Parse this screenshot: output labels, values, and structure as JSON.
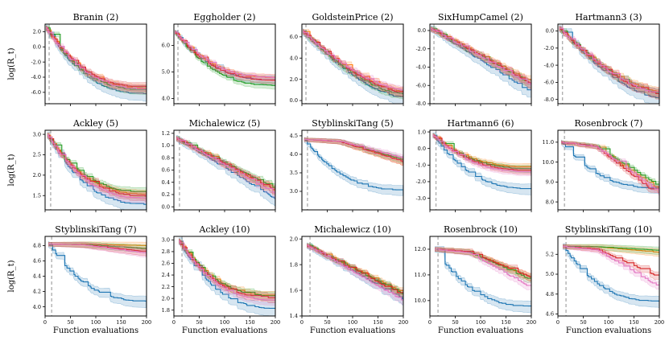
{
  "figure": {
    "xlabel": "Function evaluations",
    "ylabel": "log(R_t)"
  },
  "chart_data": [
    {
      "type": "line",
      "title": "Branin (2)",
      "xlim": [
        0,
        200
      ],
      "ylim": [
        -7.5,
        3.0
      ],
      "yticks": [
        2.0,
        0.0,
        -2.0,
        -4.0,
        -6.0
      ],
      "ytick_labels": [
        "2.0",
        "0.0",
        "-2.0",
        "-4.0",
        "-6.0"
      ],
      "init_x": 2,
      "shape": "fast",
      "blue_low": -6.3,
      "start": 2.5,
      "ends": {
        "blue": -6.1,
        "orange": -5.4,
        "green": -5.6,
        "red": -5.2,
        "pink": -5.5
      }
    },
    {
      "type": "line",
      "title": "Eggholder (2)",
      "xlim": [
        0,
        200
      ],
      "ylim": [
        3.8,
        6.8
      ],
      "yticks": [
        6.0,
        5.0,
        4.0
      ],
      "ytick_labels": [
        "6.0",
        "5.0",
        "4.0"
      ],
      "init_x": 2,
      "shape": "fast",
      "start": 6.5,
      "ends": {
        "blue": 4.7,
        "orange": 4.8,
        "green": 4.5,
        "red": 4.7,
        "pink": 4.8
      }
    },
    {
      "type": "line",
      "title": "GoldsteinPrice (2)",
      "xlim": [
        0,
        200
      ],
      "ylim": [
        -0.3,
        7.2
      ],
      "yticks": [
        6.0,
        4.0,
        2.0,
        0.0
      ],
      "ytick_labels": [
        "6.0",
        "4.0",
        "2.0",
        "0.0"
      ],
      "init_x": 2,
      "shape": "mid",
      "start": 6.5,
      "ends": {
        "blue": 0.3,
        "orange": 0.9,
        "green": 0.6,
        "red": 0.8,
        "pink": 1.0
      }
    },
    {
      "type": "line",
      "title": "SixHumpCamel (2)",
      "xlim": [
        0,
        200
      ],
      "ylim": [
        -8.0,
        0.7
      ],
      "yticks": [
        0.0,
        -2.0,
        -4.0,
        -6.0,
        -8.0
      ],
      "ytick_labels": [
        "0.0",
        "-2.0",
        "-4.0",
        "-6.0",
        "-8.0"
      ],
      "init_x": 2,
      "shape": "linear",
      "start": 0.2,
      "ends": {
        "blue": -6.8,
        "orange": -5.6,
        "green": -5.9,
        "red": -5.8,
        "pink": -6.0
      }
    },
    {
      "type": "line",
      "title": "Hartmann3 (3)",
      "xlim": [
        0,
        200
      ],
      "ylim": [
        -8.5,
        0.8
      ],
      "yticks": [
        0.0,
        -2.0,
        -4.0,
        -6.0,
        -8.0
      ],
      "ytick_labels": [
        "0.0",
        "-2.0",
        "-4.0",
        "-6.0",
        "-8.0"
      ],
      "init_x": 3,
      "shape": "mid",
      "start": 0.3,
      "ends": {
        "blue": -7.8,
        "orange": -7.0,
        "green": -7.2,
        "red": -7.3,
        "pink": -7.2
      }
    },
    {
      "type": "line",
      "title": "Ackley (5)",
      "xlim": [
        0,
        200
      ],
      "ylim": [
        1.15,
        3.1
      ],
      "yticks": [
        3.0,
        2.5,
        2.0,
        1.5
      ],
      "ytick_labels": [
        "3.0",
        "2.5",
        "2.0",
        "1.5"
      ],
      "init_x": 5,
      "shape": "fast",
      "start": 2.98,
      "ends": {
        "blue": 1.3,
        "orange": 1.55,
        "green": 1.6,
        "red": 1.5,
        "pink": 1.45
      }
    },
    {
      "type": "line",
      "title": "Michalewicz (5)",
      "xlim": [
        0,
        200
      ],
      "ylim": [
        -0.05,
        1.25
      ],
      "yticks": [
        1.2,
        1.0,
        0.8,
        0.6,
        0.4,
        0.2,
        0.0
      ],
      "ytick_labels": [
        "1.2",
        "1.0",
        "0.8",
        "0.6",
        "0.4",
        "0.2",
        "0.0"
      ],
      "init_x": 5,
      "shape": "linear",
      "start": 1.12,
      "ends": {
        "blue": 0.13,
        "orange": 0.25,
        "green": 0.3,
        "red": 0.27,
        "pink": 0.22
      }
    },
    {
      "type": "line",
      "title": "StyblinskiTang (5)",
      "xlim": [
        0,
        200
      ],
      "ylim": [
        2.5,
        4.65
      ],
      "yticks": [
        4.5,
        4.0,
        3.5,
        3.0
      ],
      "ytick_labels": [
        "4.5",
        "4.0",
        "3.5",
        "3.0"
      ],
      "init_x": 5,
      "shape": "plateau",
      "start": 4.4,
      "ends": {
        "blue": 3.05,
        "orange": 3.8,
        "green": 3.85,
        "red": 3.8,
        "pink": 3.9
      }
    },
    {
      "type": "line",
      "title": "Hartmann6 (6)",
      "xlim": [
        0,
        200
      ],
      "ylim": [
        -3.7,
        1.1
      ],
      "yticks": [
        1.0,
        0.0,
        -1.0,
        -2.0,
        -3.0
      ],
      "ytick_labels": [
        "1.0",
        "0.0",
        "-1.0",
        "-2.0",
        "-3.0"
      ],
      "init_x": 6,
      "shape": "fast",
      "start": 0.8,
      "ends": {
        "blue": -2.4,
        "orange": -1.1,
        "green": -1.2,
        "red": -1.3,
        "pink": -1.4
      }
    },
    {
      "type": "line",
      "title": "Rosenbrock (7)",
      "xlim": [
        0,
        200
      ],
      "ylim": [
        7.6,
        11.6
      ],
      "yticks": [
        11.0,
        10.0,
        9.0,
        8.0
      ],
      "ytick_labels": [
        "11.0",
        "10.0",
        "9.0",
        "8.0"
      ],
      "init_x": 7,
      "shape": "plateau",
      "start": 11.0,
      "ends": {
        "blue": 8.7,
        "orange": 8.6,
        "green": 8.8,
        "red": 8.3,
        "pink": 8.5
      }
    },
    {
      "type": "line",
      "title": "StyblinskiTang (7)",
      "xlim": [
        0,
        200
      ],
      "ylim": [
        3.88,
        4.92
      ],
      "yticks": [
        4.8,
        4.6,
        4.4,
        4.2,
        4.0
      ],
      "ytick_labels": [
        "4.8",
        "4.6",
        "4.4",
        "4.2",
        "4.0"
      ],
      "init_x": 7,
      "shape": "plateau",
      "start": 4.82,
      "ends": {
        "blue": 4.08,
        "orange": 4.8,
        "green": 4.76,
        "red": 4.72,
        "pink": 4.7
      }
    },
    {
      "type": "line",
      "title": "Ackley (10)",
      "xlim": [
        0,
        200
      ],
      "ylim": [
        1.7,
        3.06
      ],
      "yticks": [
        3.0,
        2.8,
        2.6,
        2.4,
        2.2,
        2.0,
        1.8
      ],
      "ytick_labels": [
        "3.0",
        "2.8",
        "2.6",
        "2.4",
        "2.2",
        "2.0",
        "1.8"
      ],
      "init_x": 10,
      "shape": "fast",
      "start": 2.98,
      "ends": {
        "blue": 1.84,
        "orange": 2.05,
        "green": 2.05,
        "red": 2.02,
        "pink": 1.98
      }
    },
    {
      "type": "line",
      "title": "Michalewicz (10)",
      "xlim": [
        0,
        200
      ],
      "ylim": [
        1.4,
        2.02
      ],
      "yticks": [
        2.0,
        1.8,
        1.6,
        1.4
      ],
      "ytick_labels": [
        "2.0",
        "1.8",
        "1.6",
        "1.4"
      ],
      "init_x": 10,
      "shape": "linear",
      "start": 1.95,
      "ends": {
        "blue": 1.53,
        "orange": 1.58,
        "green": 1.57,
        "red": 1.56,
        "pink": 1.52
      }
    },
    {
      "type": "line",
      "title": "Rosenbrock (10)",
      "xlim": [
        0,
        200
      ],
      "ylim": [
        9.4,
        12.5
      ],
      "yticks": [
        12.0,
        11.0,
        10.0
      ],
      "ytick_labels": [
        "12.0",
        "11.0",
        "10.0"
      ],
      "init_x": 10,
      "shape": "plateau",
      "start": 12.0,
      "ends": {
        "blue": 9.8,
        "orange": 10.9,
        "green": 10.8,
        "red": 10.9,
        "pink": 10.5
      }
    },
    {
      "type": "line",
      "title": "StyblinskiTang (10)",
      "xlim": [
        0,
        200
      ],
      "ylim": [
        4.58,
        5.38
      ],
      "yticks": [
        5.2,
        5.0,
        4.8,
        4.6
      ],
      "ytick_labels": [
        "5.2",
        "5.0",
        "4.8",
        "4.6"
      ],
      "init_x": 10,
      "shape": "plateau",
      "start": 5.28,
      "ends": {
        "blue": 4.73,
        "orange": 5.22,
        "green": 5.24,
        "red": 4.97,
        "pink": 4.87
      }
    }
  ],
  "shared_x": {
    "ticks": [
      0,
      50,
      100,
      150,
      200
    ],
    "tick_labels": [
      "0",
      "50",
      "100",
      "150",
      "200"
    ]
  },
  "colors": {
    "blue": "#1f77b4",
    "orange": "#ff7f0e",
    "green": "#2ca02c",
    "red": "#d62728",
    "pink": "#e377c2",
    "init_line": "#b0b0b0",
    "axis": "#000000"
  }
}
